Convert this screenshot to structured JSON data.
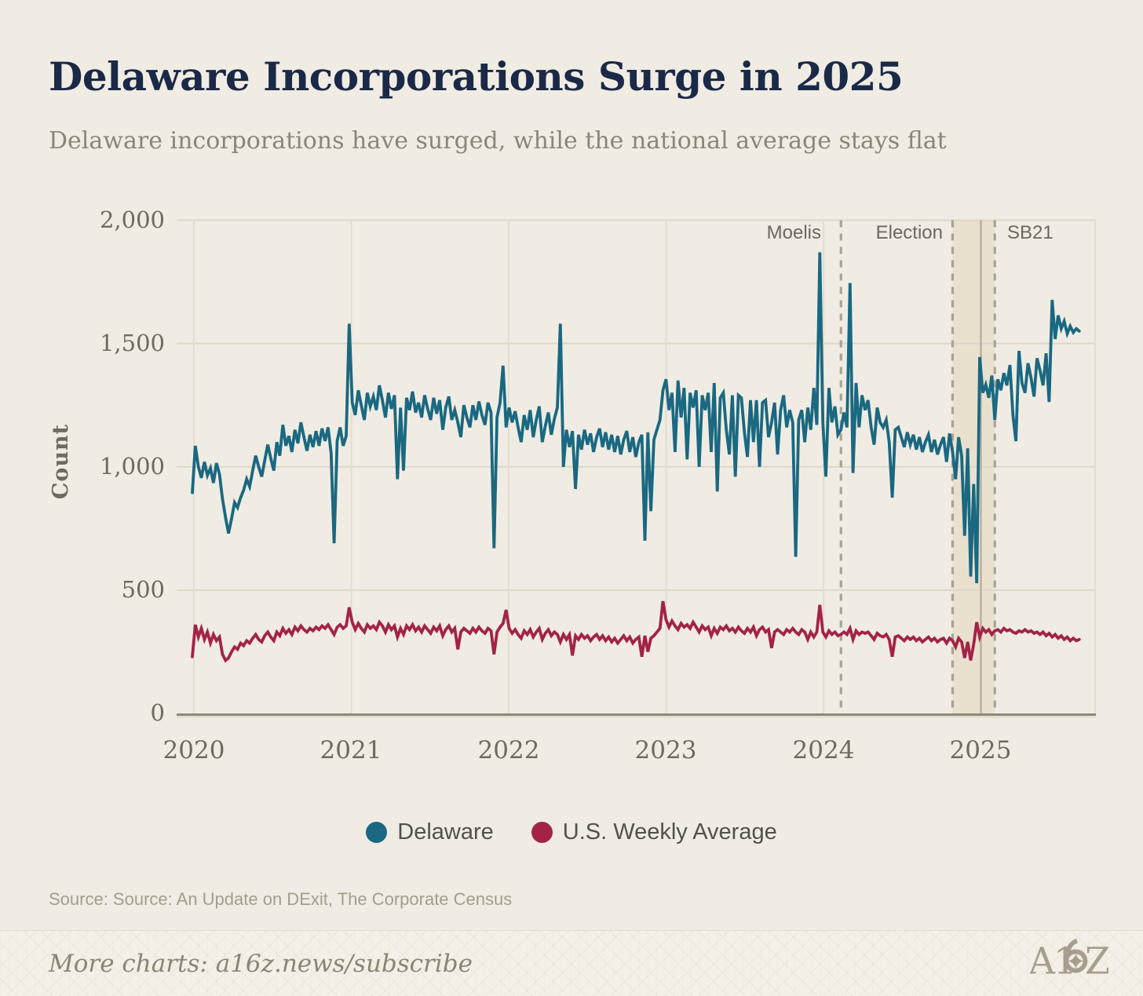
{
  "header": {
    "title": "Delaware Incorporations Surge in 2025",
    "subtitle": "Delaware incorporations have surged, while the national average stays flat"
  },
  "chart_data": {
    "type": "line",
    "title": "Delaware Incorporations Surge in 2025",
    "xlabel": "",
    "ylabel": "Count",
    "ylim": [
      0,
      2000
    ],
    "grid": true,
    "legend_position": "bottom",
    "x_unit": "week",
    "x_start_year": 2020,
    "weeks_per_year": 52.18,
    "yticks": [
      {
        "value": 0,
        "label": "0"
      },
      {
        "value": 500,
        "label": "500"
      },
      {
        "value": 1000,
        "label": "1,000"
      },
      {
        "value": 1500,
        "label": "1,500"
      },
      {
        "value": 2000,
        "label": "2,000"
      }
    ],
    "xticks": [
      {
        "year": 2020,
        "label": "2020"
      },
      {
        "year": 2021,
        "label": "2021"
      },
      {
        "year": 2022,
        "label": "2022"
      },
      {
        "year": 2023,
        "label": "2023"
      },
      {
        "year": 2024,
        "label": "2024"
      },
      {
        "year": 2025,
        "label": "2025"
      }
    ],
    "annotations": [
      {
        "label": "Moelis",
        "week": 215
      },
      {
        "label": "Election",
        "week": 252
      },
      {
        "label": "SB21",
        "week": 266
      }
    ],
    "band": {
      "from_week": 252,
      "to_week": 266,
      "color": "#e9e1ce"
    },
    "series": [
      {
        "name": "Delaware",
        "color": "#1a6881",
        "values": [
          895,
          1085,
          1000,
          955,
          1020,
          965,
          995,
          935,
          1015,
          970,
          870,
          795,
          730,
          790,
          855,
          835,
          875,
          905,
          950,
          920,
          985,
          1045,
          1000,
          960,
          1025,
          1090,
          1035,
          985,
          1100,
          1045,
          1170,
          1085,
          1125,
          1060,
          1150,
          1095,
          1180,
          1120,
          1065,
          1130,
          1080,
          1145,
          1085,
          1155,
          1105,
          1160,
          1055,
          690,
          1105,
          1160,
          1085,
          1125,
          1580,
          1260,
          1210,
          1310,
          1250,
          1190,
          1300,
          1245,
          1285,
          1230,
          1330,
          1270,
          1200,
          1300,
          1235,
          1290,
          950,
          1240,
          985,
          1280,
          1230,
          1305,
          1220,
          1260,
          1200,
          1290,
          1235,
          1190,
          1280,
          1215,
          1270,
          1150,
          1240,
          1285,
          1190,
          1230,
          1180,
          1120,
          1250,
          1200,
          1160,
          1250,
          1190,
          1265,
          1210,
          1170,
          1260,
          1220,
          670,
          1200,
          1260,
          1410,
          1160,
          1240,
          1180,
          1225,
          1160,
          1100,
          1210,
          1150,
          1230,
          1120,
          1190,
          1245,
          1100,
          1165,
          1220,
          1130,
          1195,
          1240,
          1580,
          1000,
          1150,
          1080,
          1145,
          910,
          1130,
          1070,
          1150,
          1090,
          1135,
          1060,
          1120,
          1155,
          1080,
          1140,
          1070,
          1130,
          1060,
          1125,
          1050,
          1110,
          1145,
          1060,
          1120,
          1040,
          1100,
          1130,
          700,
          1140,
          820,
          1110,
          1150,
          1190,
          1310,
          1355,
          1230,
          1300,
          1060,
          1350,
          1200,
          1320,
          1030,
          1300,
          1240,
          1310,
          1000,
          1290,
          1230,
          1300,
          1060,
          1340,
          900,
          1280,
          1300,
          1150,
          1050,
          1290,
          960,
          1290,
          1280,
          1140,
          1040,
          1270,
          1100,
          1270,
          1000,
          1260,
          1270,
          1120,
          1180,
          1260,
          1050,
          1230,
          1290,
          1160,
          1230,
          1180,
          635,
          1190,
          1230,
          1100,
          1240,
          1150,
          1320,
          1170,
          1870,
          1180,
          960,
          1320,
          1180,
          1245,
          1130,
          1150,
          1220,
          1160,
          1745,
          975,
          1340,
          1160,
          1290,
          1230,
          1270,
          1160,
          1090,
          1240,
          1180,
          1160,
          1190,
          1100,
          875,
          1150,
          1160,
          1120,
          1080,
          1140,
          1090,
          1130,
          1070,
          1120,
          1060,
          1100,
          1130,
          1060,
          1110,
          1050,
          1090,
          1120,
          1020,
          1135,
          1060,
          950,
          1120,
          1045,
          720,
          1075,
          555,
          930,
          528,
          1445,
          1300,
          1333,
          1280,
          1370,
          1190,
          1355,
          1310,
          1380,
          1330,
          1413,
          1210,
          1104,
          1470,
          1340,
          1300,
          1420,
          1360,
          1285,
          1440,
          1390,
          1330,
          1460,
          1263,
          1677,
          1518,
          1614,
          1560,
          1590,
          1540,
          1570,
          1545,
          1560,
          1550
        ]
      },
      {
        "name": "U.S. Weekly Average",
        "color": "#a32347",
        "values": [
          230,
          360,
          310,
          345,
          300,
          330,
          285,
          320,
          295,
          310,
          240,
          215,
          225,
          250,
          270,
          260,
          285,
          275,
          295,
          285,
          305,
          320,
          300,
          290,
          315,
          330,
          310,
          295,
          330,
          315,
          345,
          325,
          340,
          320,
          350,
          335,
          355,
          340,
          330,
          345,
          335,
          350,
          340,
          355,
          345,
          360,
          340,
          320,
          350,
          360,
          345,
          355,
          430,
          370,
          340,
          365,
          345,
          330,
          360,
          345,
          355,
          340,
          370,
          355,
          330,
          360,
          340,
          355,
          310,
          345,
          320,
          355,
          340,
          360,
          335,
          350,
          330,
          355,
          340,
          325,
          350,
          335,
          355,
          315,
          340,
          355,
          330,
          345,
          260,
          330,
          345,
          335,
          325,
          345,
          330,
          350,
          335,
          325,
          345,
          335,
          240,
          330,
          350,
          365,
          420,
          345,
          325,
          340,
          320,
          305,
          335,
          320,
          340,
          310,
          330,
          345,
          300,
          325,
          340,
          315,
          330,
          320,
          290,
          320,
          300,
          320,
          235,
          315,
          300,
          320,
          305,
          315,
          295,
          310,
          320,
          300,
          315,
          295,
          310,
          290,
          305,
          285,
          300,
          315,
          295,
          310,
          285,
          300,
          310,
          230,
          315,
          250,
          305,
          315,
          330,
          345,
          455,
          380,
          350,
          375,
          355,
          340,
          365,
          350,
          360,
          345,
          370,
          350,
          330,
          355,
          340,
          350,
          315,
          345,
          325,
          350,
          340,
          355,
          335,
          345,
          330,
          350,
          335,
          325,
          345,
          330,
          350,
          315,
          340,
          350,
          330,
          340,
          265,
          330,
          340,
          330,
          320,
          340,
          330,
          345,
          330,
          320,
          340,
          330,
          300,
          330,
          310,
          330,
          440,
          330,
          310,
          335,
          320,
          330,
          315,
          320,
          330,
          320,
          345,
          300,
          335,
          320,
          330,
          325,
          330,
          315,
          300,
          325,
          315,
          310,
          320,
          300,
          230,
          310,
          315,
          305,
          295,
          310,
          300,
          310,
          295,
          305,
          290,
          300,
          310,
          295,
          305,
          290,
          300,
          305,
          285,
          305,
          295,
          270,
          305,
          290,
          225,
          290,
          215,
          280,
          370,
          310,
          345,
          330,
          340,
          320,
          335,
          340,
          330,
          345,
          335,
          340,
          330,
          325,
          335,
          330,
          340,
          330,
          335,
          325,
          330,
          320,
          330,
          315,
          325,
          310,
          320,
          305,
          315,
          300,
          310,
          295,
          305,
          295,
          300
        ]
      }
    ]
  },
  "source": {
    "text": "Source: Source: An Update on DExit, The Corporate Census"
  },
  "footer": {
    "more_charts": "More charts: a16z.news/subscribe",
    "logo_text": "A16Z"
  }
}
